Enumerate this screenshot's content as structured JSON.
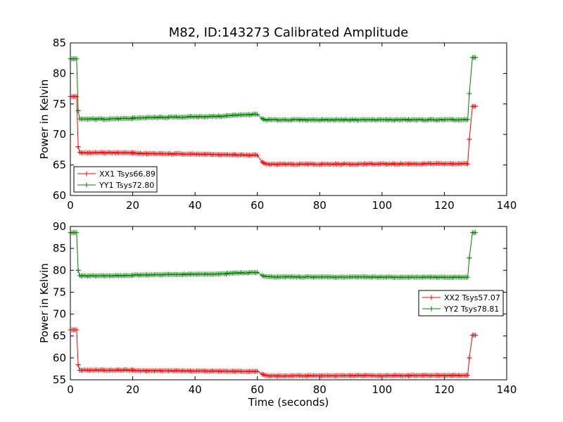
{
  "chart_data": [
    {
      "type": "line",
      "title": "M82, ID:143273 Calibrated Amplitude",
      "xlabel": "",
      "ylabel": "Power in Kelvin",
      "xlim": [
        0,
        140
      ],
      "ylim": [
        60,
        85
      ],
      "xticks": [
        0,
        20,
        40,
        60,
        80,
        100,
        120,
        140
      ],
      "yticks": [
        60,
        65,
        70,
        75,
        80,
        85
      ],
      "grid": false,
      "legend_position": "lower-left",
      "markers": "plus",
      "series": [
        {
          "name": "XX1 Tsys66.89",
          "color": "#ff0000",
          "segments": [
            {
              "x_start": 0,
              "x_end": 2,
              "y_start": 76.2,
              "y_end": 76.2
            },
            {
              "x_start": 2.5,
              "x_end": 2.5,
              "y_start": 68.0,
              "y_end": 68.0
            },
            {
              "x_start": 3,
              "x_end": 20,
              "y_start": 67.0,
              "y_end": 67.0
            },
            {
              "x_start": 20,
              "x_end": 60,
              "y_start": 66.9,
              "y_end": 66.6
            },
            {
              "x_start": 61.5,
              "x_end": 62.5,
              "y_start": 65.5,
              "y_end": 65.2
            },
            {
              "x_start": 63,
              "x_end": 127.5,
              "y_start": 65.1,
              "y_end": 65.2
            },
            {
              "x_start": 128,
              "x_end": 128,
              "y_start": 69.2,
              "y_end": 69.2
            },
            {
              "x_start": 129,
              "x_end": 130,
              "y_start": 74.6,
              "y_end": 74.6
            }
          ]
        },
        {
          "name": "YY1 Tsys72.80",
          "color": "#008000",
          "segments": [
            {
              "x_start": 0,
              "x_end": 2,
              "y_start": 82.4,
              "y_end": 82.4
            },
            {
              "x_start": 2.5,
              "x_end": 2.5,
              "y_start": 73.9,
              "y_end": 73.9
            },
            {
              "x_start": 3,
              "x_end": 20,
              "y_start": 72.5,
              "y_end": 72.6
            },
            {
              "x_start": 20,
              "x_end": 50,
              "y_start": 72.7,
              "y_end": 73.0
            },
            {
              "x_start": 50,
              "x_end": 60,
              "y_start": 73.1,
              "y_end": 73.3
            },
            {
              "x_start": 61.5,
              "x_end": 62.5,
              "y_start": 72.6,
              "y_end": 72.4
            },
            {
              "x_start": 63,
              "x_end": 127.5,
              "y_start": 72.4,
              "y_end": 72.4
            },
            {
              "x_start": 128,
              "x_end": 128,
              "y_start": 76.7,
              "y_end": 76.7
            },
            {
              "x_start": 129,
              "x_end": 130,
              "y_start": 82.6,
              "y_end": 82.6
            }
          ]
        }
      ]
    },
    {
      "type": "line",
      "title": "",
      "xlabel": "Time (seconds)",
      "ylabel": "Power in Kelvin",
      "xlim": [
        0,
        140
      ],
      "ylim": [
        55,
        90
      ],
      "xticks": [
        0,
        20,
        40,
        60,
        80,
        100,
        120,
        140
      ],
      "yticks": [
        55,
        60,
        65,
        70,
        75,
        80,
        85,
        90
      ],
      "grid": false,
      "legend_position": "center-right",
      "markers": "plus",
      "series": [
        {
          "name": "XX2 Tsys57.07",
          "color": "#ff0000",
          "segments": [
            {
              "x_start": 0,
              "x_end": 2,
              "y_start": 66.4,
              "y_end": 66.4
            },
            {
              "x_start": 2.5,
              "x_end": 2.5,
              "y_start": 58.4,
              "y_end": 58.4
            },
            {
              "x_start": 3,
              "x_end": 20,
              "y_start": 57.2,
              "y_end": 57.2
            },
            {
              "x_start": 20,
              "x_end": 60,
              "y_start": 57.1,
              "y_end": 56.9
            },
            {
              "x_start": 61.5,
              "x_end": 62.5,
              "y_start": 56.3,
              "y_end": 56.0
            },
            {
              "x_start": 63,
              "x_end": 127.5,
              "y_start": 55.9,
              "y_end": 56.0
            },
            {
              "x_start": 128,
              "x_end": 128,
              "y_start": 60.0,
              "y_end": 60.0
            },
            {
              "x_start": 129,
              "x_end": 130,
              "y_start": 65.2,
              "y_end": 65.2
            }
          ]
        },
        {
          "name": "YY2 Tsys78.81",
          "color": "#008000",
          "segments": [
            {
              "x_start": 0,
              "x_end": 2,
              "y_start": 88.6,
              "y_end": 88.6
            },
            {
              "x_start": 2.5,
              "x_end": 2.5,
              "y_start": 80.0,
              "y_end": 80.0
            },
            {
              "x_start": 3,
              "x_end": 20,
              "y_start": 78.7,
              "y_end": 78.8
            },
            {
              "x_start": 20,
              "x_end": 50,
              "y_start": 78.9,
              "y_end": 79.2
            },
            {
              "x_start": 50,
              "x_end": 60,
              "y_start": 79.3,
              "y_end": 79.5
            },
            {
              "x_start": 61.5,
              "x_end": 62.5,
              "y_start": 78.8,
              "y_end": 78.6
            },
            {
              "x_start": 63,
              "x_end": 127.5,
              "y_start": 78.5,
              "y_end": 78.4
            },
            {
              "x_start": 128,
              "x_end": 128,
              "y_start": 82.8,
              "y_end": 82.8
            },
            {
              "x_start": 129,
              "x_end": 130,
              "y_start": 88.6,
              "y_end": 88.6
            }
          ]
        }
      ]
    }
  ]
}
